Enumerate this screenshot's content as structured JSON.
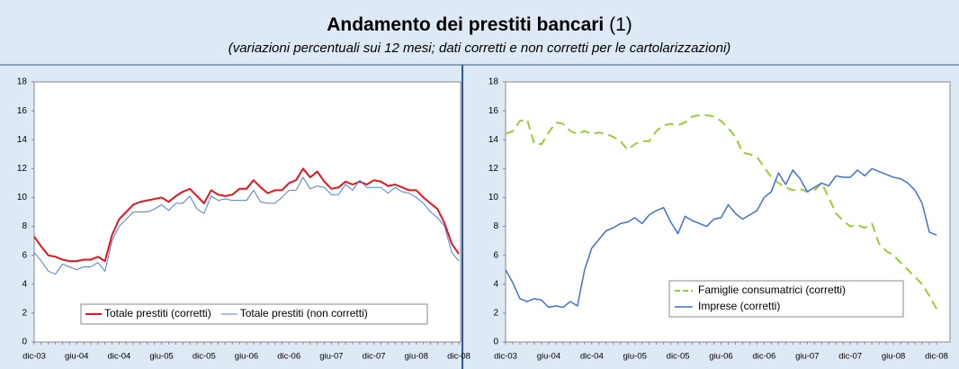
{
  "header": {
    "title": "Andamento dei prestiti bancari",
    "title_note": "(1)",
    "subtitle": "(variazioni percentuali sui 12 mesi; dati corretti e non corretti per le cartolarizzazioni)"
  },
  "chart_data": [
    {
      "type": "line",
      "legend": "lower center",
      "grid": false,
      "categories": [
        "dic-03",
        null,
        null,
        null,
        null,
        null,
        "giu-04",
        null,
        null,
        null,
        null,
        null,
        "dic-04",
        null,
        null,
        null,
        null,
        null,
        "giu-05",
        null,
        null,
        null,
        null,
        null,
        "dic-05",
        null,
        null,
        null,
        null,
        null,
        "giu-06",
        null,
        null,
        null,
        null,
        null,
        "dic-06",
        null,
        null,
        null,
        null,
        null,
        "giu-07",
        null,
        null,
        null,
        null,
        null,
        "dic-07",
        null,
        null,
        null,
        null,
        null,
        "giu-08",
        null,
        null,
        null,
        null,
        null,
        "dic-08"
      ],
      "ylim": [
        0,
        18
      ],
      "yticks": [
        0,
        2,
        4,
        6,
        8,
        10,
        12,
        14,
        16,
        18
      ],
      "series": [
        {
          "name": "Totale prestiti (corretti)",
          "color": "#e8141b",
          "style": "solid",
          "width": 2,
          "values": [
            7.3,
            6.6,
            6.0,
            5.9,
            5.7,
            5.6,
            5.6,
            5.7,
            5.7,
            5.9,
            5.6,
            7.4,
            8.5,
            9.0,
            9.5,
            9.7,
            9.8,
            9.9,
            10.0,
            9.7,
            10.1,
            10.4,
            10.6,
            10.1,
            9.6,
            10.5,
            10.2,
            10.1,
            10.2,
            10.6,
            10.6,
            11.2,
            10.7,
            10.3,
            10.5,
            10.5,
            11.0,
            11.2,
            12.0,
            11.4,
            11.8,
            11.1,
            10.6,
            10.7,
            11.1,
            10.9,
            11.1,
            10.9,
            11.2,
            11.1,
            10.8,
            10.9,
            10.7,
            10.5,
            10.5,
            10.0,
            9.6,
            9.2,
            8.2,
            6.8,
            6.1
          ]
        },
        {
          "name": "Totale prestiti (non corretti)",
          "color": "#4a7fe0",
          "style": "solid",
          "width": 1,
          "values": [
            6.2,
            5.6,
            4.9,
            4.7,
            5.4,
            5.2,
            5.0,
            5.2,
            5.2,
            5.5,
            4.9,
            7.0,
            8.0,
            8.5,
            9.0,
            9.0,
            9.0,
            9.2,
            9.5,
            9.1,
            9.6,
            9.6,
            10.1,
            9.2,
            8.9,
            10.1,
            9.8,
            9.9,
            9.8,
            9.8,
            9.8,
            10.5,
            9.7,
            9.6,
            9.6,
            10.0,
            10.5,
            10.5,
            11.4,
            10.6,
            10.8,
            10.7,
            10.2,
            10.2,
            10.9,
            10.5,
            11.2,
            10.7,
            10.7,
            10.7,
            10.3,
            10.7,
            10.4,
            10.3,
            10.0,
            9.6,
            9.0,
            8.6,
            8.0,
            6.2,
            5.6
          ]
        }
      ]
    },
    {
      "type": "line",
      "legend": "lower center",
      "grid": false,
      "categories": [
        "dic-03",
        null,
        null,
        null,
        null,
        null,
        "giu-04",
        null,
        null,
        null,
        null,
        null,
        "dic-04",
        null,
        null,
        null,
        null,
        null,
        "giu-05",
        null,
        null,
        null,
        null,
        null,
        "dic-05",
        null,
        null,
        null,
        null,
        null,
        "giu-06",
        null,
        null,
        null,
        null,
        null,
        "dic-06",
        null,
        null,
        null,
        null,
        null,
        "giu-07",
        null,
        null,
        null,
        null,
        null,
        "dic-07",
        null,
        null,
        null,
        null,
        null,
        "giu-08",
        null,
        null,
        null,
        null,
        null,
        "dic-08"
      ],
      "ylim": [
        0,
        18
      ],
      "yticks": [
        0,
        2,
        4,
        6,
        8,
        10,
        12,
        14,
        16,
        18
      ],
      "series": [
        {
          "name": "Famiglie consumatrici (corretti)",
          "color": "#9acd32",
          "style": "dashed",
          "width": 2,
          "values": [
            14.4,
            14.6,
            15.3,
            15.4,
            13.7,
            13.7,
            14.5,
            15.2,
            15.1,
            14.6,
            14.4,
            14.6,
            14.4,
            14.5,
            14.4,
            14.2,
            13.9,
            13.3,
            13.7,
            13.9,
            13.9,
            14.6,
            15.0,
            15.1,
            15.0,
            15.2,
            15.6,
            15.7,
            15.7,
            15.6,
            15.3,
            14.8,
            14.2,
            13.1,
            13.0,
            12.8,
            12.1,
            11.4,
            11.0,
            10.7,
            10.5,
            10.6,
            10.4,
            10.5,
            11.0,
            10.0,
            8.9,
            8.4,
            8.0,
            8.1,
            7.9,
            8.2,
            6.8,
            6.3,
            6.0,
            5.5,
            5.0,
            4.5,
            4.0,
            3.2,
            2.3
          ]
        },
        {
          "name": "Imprese (corretti)",
          "color": "#3f6fe0",
          "style": "solid",
          "width": 1.5,
          "values": [
            5.0,
            4.1,
            3.0,
            2.8,
            3.0,
            2.9,
            2.4,
            2.5,
            2.4,
            2.8,
            2.5,
            5.0,
            6.5,
            7.1,
            7.7,
            7.9,
            8.2,
            8.3,
            8.6,
            8.2,
            8.8,
            9.1,
            9.3,
            8.3,
            7.5,
            8.7,
            8.4,
            8.2,
            8.0,
            8.5,
            8.6,
            9.5,
            8.9,
            8.5,
            8.8,
            9.1,
            10.0,
            10.4,
            11.7,
            10.9,
            11.9,
            11.3,
            10.4,
            10.7,
            11.0,
            10.8,
            11.5,
            11.4,
            11.4,
            11.9,
            11.5,
            12.0,
            11.8,
            11.6,
            11.4,
            11.3,
            11.0,
            10.5,
            9.6,
            7.6,
            7.4
          ]
        }
      ]
    }
  ]
}
